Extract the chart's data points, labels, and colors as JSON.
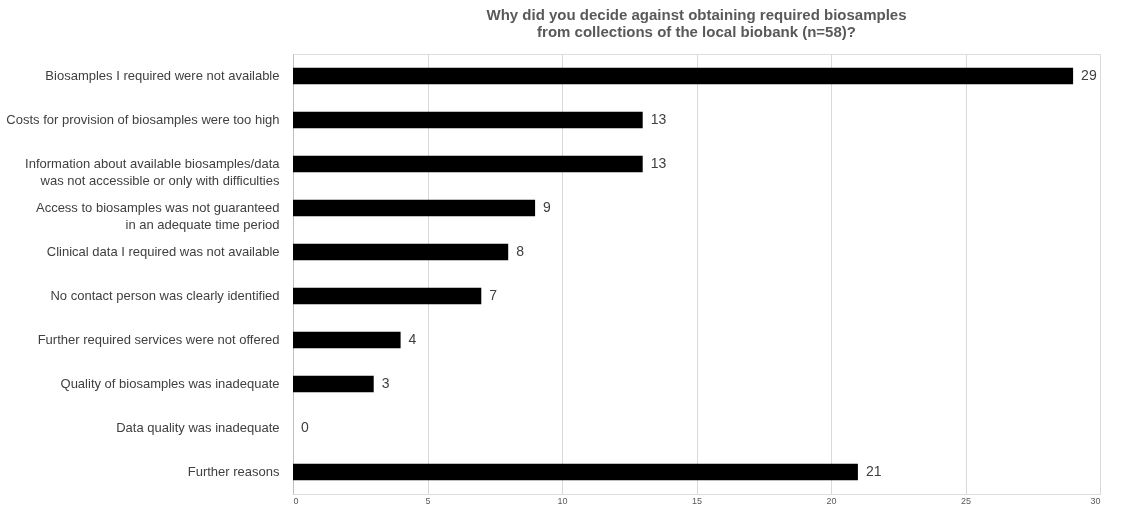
{
  "chart_data": {
    "type": "bar",
    "orientation": "horizontal",
    "title": "Why did you decide against obtaining required biosamples\nfrom collections of the local biobank (n=58)?",
    "categories": [
      "Biosamples I required were not available",
      "Costs for provision of biosamples were too high",
      "Information about available biosamples/data\nwas not accessible or only with difficulties",
      "Access to biosamples was not guaranteed\nin an adequate time period",
      "Clinical data I required was not available",
      "No contact person was clearly identified",
      "Further required services were not offered",
      "Quality of biosamples was inadequate",
      "Data quality was inadequate",
      "Further reasons"
    ],
    "values": [
      29,
      13,
      13,
      9,
      8,
      7,
      4,
      3,
      0,
      21
    ],
    "color": "#000000",
    "xlim": [
      0,
      30
    ],
    "xticks": [
      0,
      5,
      10,
      15,
      20,
      25,
      30
    ],
    "grid": "x",
    "data_labels": true
  }
}
